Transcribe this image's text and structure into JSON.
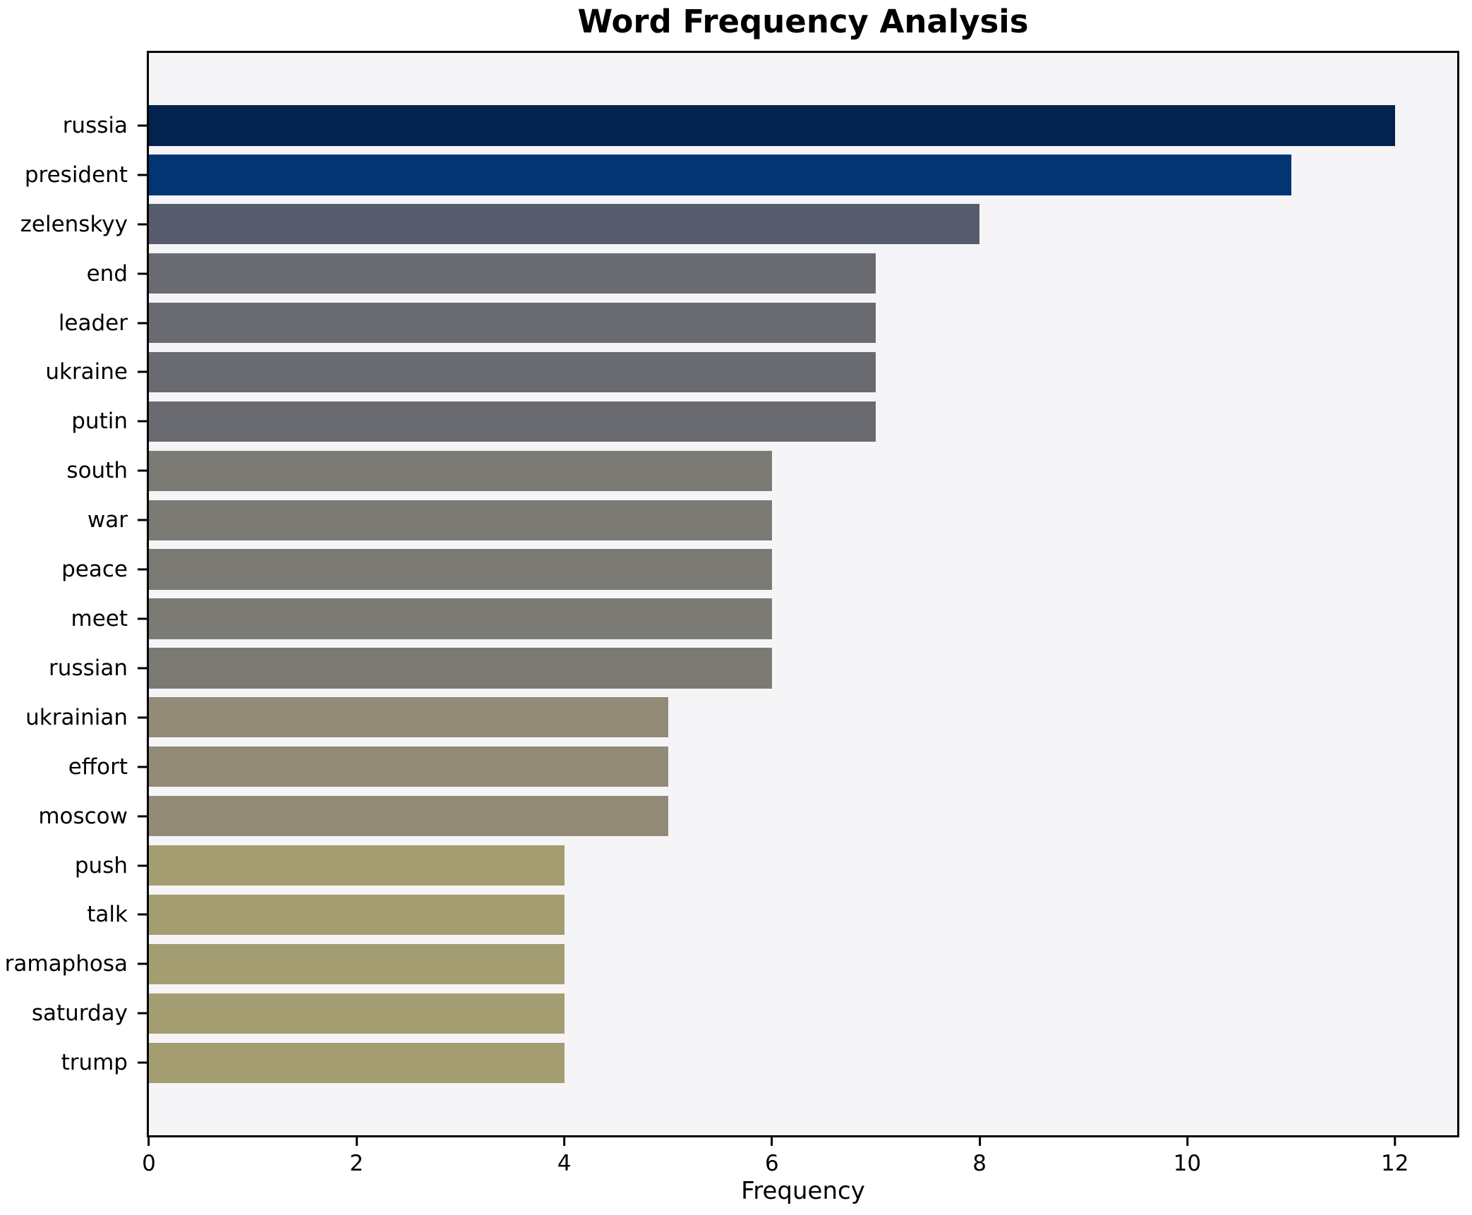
{
  "chart_data": {
    "type": "bar",
    "orientation": "horizontal",
    "title": "Word Frequency Analysis",
    "xlabel": "Frequency",
    "ylabel": "",
    "categories": [
      "russia",
      "president",
      "zelenskyy",
      "end",
      "leader",
      "ukraine",
      "putin",
      "south",
      "war",
      "peace",
      "meet",
      "russian",
      "ukrainian",
      "effort",
      "moscow",
      "push",
      "talk",
      "ramaphosa",
      "saturday",
      "trump"
    ],
    "values": [
      12,
      11,
      8,
      7,
      7,
      7,
      7,
      6,
      6,
      6,
      6,
      6,
      5,
      5,
      5,
      4,
      4,
      4,
      4,
      4
    ],
    "bar_colors": [
      "#02234e",
      "#033573",
      "#565c6c",
      "#6a6b70",
      "#6a6b70",
      "#6a6b70",
      "#6a6b70",
      "#7b7a75",
      "#7b7a75",
      "#7b7a75",
      "#7b7a75",
      "#7b7a75",
      "#918b78",
      "#918b78",
      "#918b78",
      "#a49d72",
      "#a49d72",
      "#a49d72",
      "#a49d72",
      "#a49d72"
    ],
    "xlim": [
      0,
      12.6
    ],
    "xticks": [
      0,
      2,
      4,
      6,
      8,
      10,
      12
    ],
    "grid": false,
    "legend": null,
    "bar_height_fraction": 0.8,
    "plot_background": "#f5f4f6",
    "figure_background": "#ffffff",
    "spine_color": "#000000",
    "text_color": "#000000"
  }
}
